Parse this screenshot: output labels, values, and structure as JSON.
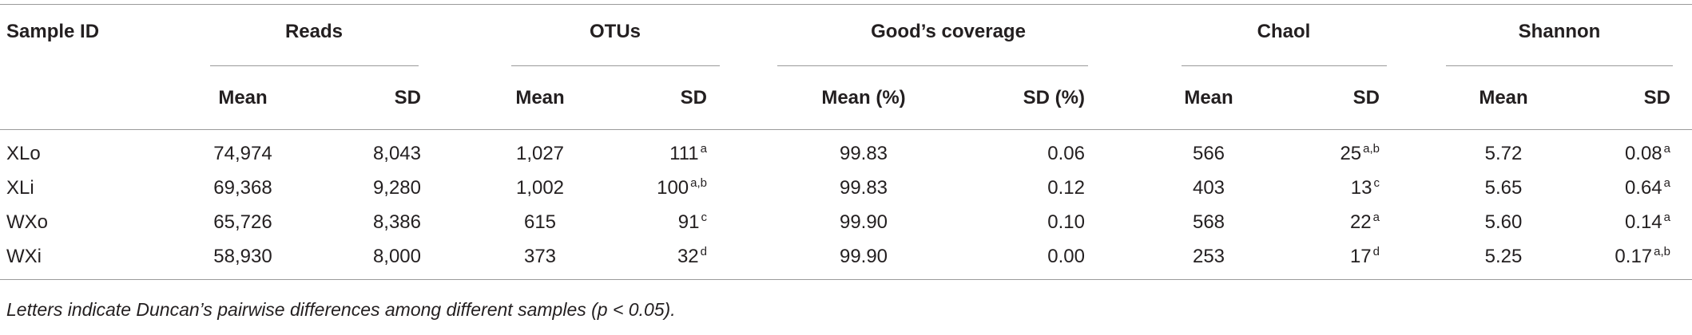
{
  "table": {
    "header": {
      "sample_id": "Sample ID",
      "groups": [
        "Reads",
        "OTUs",
        "Good’s coverage",
        "Chaol",
        "Shannon"
      ],
      "subheaders": [
        "Mean",
        "SD",
        "Mean",
        "SD",
        "Mean (%)",
        "SD (%)",
        "Mean",
        "SD",
        "Mean",
        "SD"
      ]
    },
    "rows": [
      {
        "id": "XLo",
        "cells": [
          {
            "text": "74,974"
          },
          {
            "text": "8,043"
          },
          {
            "text": "1,027"
          },
          {
            "text": "111",
            "sup": "a"
          },
          {
            "text": "99.83"
          },
          {
            "text": "0.06"
          },
          {
            "text": "566"
          },
          {
            "text": "25",
            "sup": "a,b"
          },
          {
            "text": "5.72"
          },
          {
            "text": "0.08",
            "sup": "a"
          }
        ]
      },
      {
        "id": "XLi",
        "cells": [
          {
            "text": "69,368"
          },
          {
            "text": "9,280"
          },
          {
            "text": "1,002"
          },
          {
            "text": "100",
            "sup": "a,b"
          },
          {
            "text": "99.83"
          },
          {
            "text": "0.12"
          },
          {
            "text": "403"
          },
          {
            "text": "13",
            "sup": "c"
          },
          {
            "text": "5.65"
          },
          {
            "text": "0.64",
            "sup": "a"
          }
        ]
      },
      {
        "id": "WXo",
        "cells": [
          {
            "text": "65,726"
          },
          {
            "text": "8,386"
          },
          {
            "text": "615"
          },
          {
            "text": "91",
            "sup": "c"
          },
          {
            "text": "99.90"
          },
          {
            "text": "0.10"
          },
          {
            "text": "568"
          },
          {
            "text": "22",
            "sup": "a"
          },
          {
            "text": "5.60"
          },
          {
            "text": "0.14",
            "sup": "a"
          }
        ]
      },
      {
        "id": "WXi",
        "cells": [
          {
            "text": "58,930"
          },
          {
            "text": "8,000"
          },
          {
            "text": "373"
          },
          {
            "text": "32",
            "sup": "d"
          },
          {
            "text": "99.90"
          },
          {
            "text": "0.00"
          },
          {
            "text": "253"
          },
          {
            "text": "17",
            "sup": "d"
          },
          {
            "text": "5.25"
          },
          {
            "text": "0.17",
            "sup": "a,b"
          }
        ]
      }
    ],
    "footnote": "Letters indicate Duncan’s pairwise differences among different samples (p < 0.05)."
  }
}
